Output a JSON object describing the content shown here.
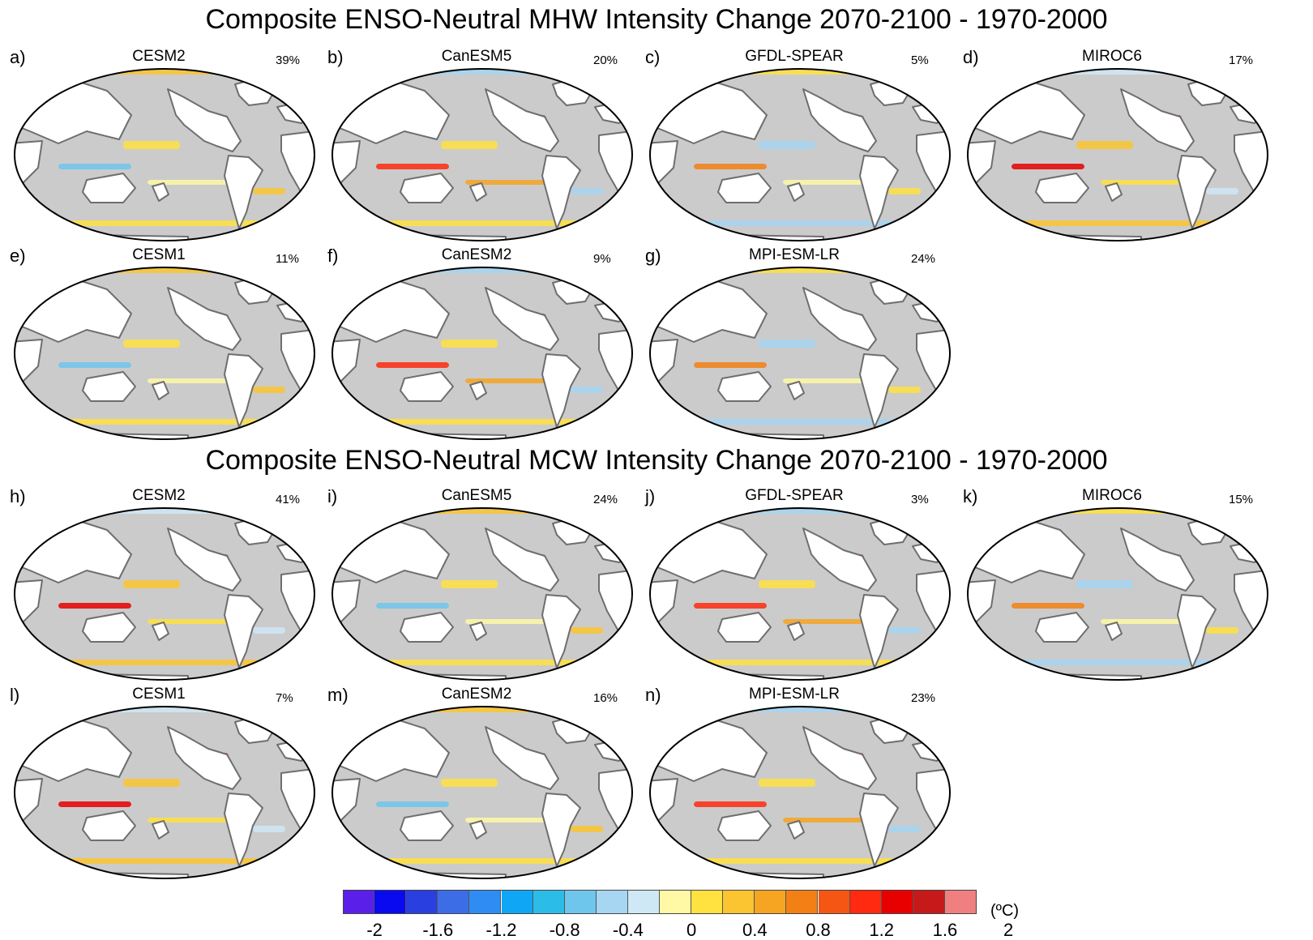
{
  "titles": {
    "mhw": "Composite ENSO-Neutral MHW Intensity Change 2070-2100 - 1970-2000",
    "mcw": "Composite ENSO-Neutral MCW Intensity Change 2070-2100 - 1970-2000"
  },
  "panels": [
    {
      "letter": "a)",
      "model": "CESM2",
      "pct": "39%"
    },
    {
      "letter": "b)",
      "model": "CanESM5",
      "pct": "20%"
    },
    {
      "letter": "c)",
      "model": "GFDL-SPEAR",
      "pct": "5%"
    },
    {
      "letter": "d)",
      "model": "MIROC6",
      "pct": "17%"
    },
    {
      "letter": "e)",
      "model": "CESM1",
      "pct": "11%"
    },
    {
      "letter": "f)",
      "model": "CanESM2",
      "pct": "9%"
    },
    {
      "letter": "g)",
      "model": "MPI-ESM-LR",
      "pct": "24%"
    },
    {
      "letter": "h)",
      "model": "CESM2",
      "pct": "41%"
    },
    {
      "letter": "i)",
      "model": "CanESM5",
      "pct": "24%"
    },
    {
      "letter": "j)",
      "model": "GFDL-SPEAR",
      "pct": "3%"
    },
    {
      "letter": "k)",
      "model": "MIROC6",
      "pct": "15%"
    },
    {
      "letter": "l)",
      "model": "CESM1",
      "pct": "7%"
    },
    {
      "letter": "m)",
      "model": "CanESM2",
      "pct": "16%"
    },
    {
      "letter": "n)",
      "model": "MPI-ESM-LR",
      "pct": "23%"
    }
  ],
  "colorbar": {
    "colors": [
      "#5a1fe8",
      "#0a0af0",
      "#2a3fe0",
      "#3c6de6",
      "#2e8cf2",
      "#0fa6f5",
      "#2bbde8",
      "#6fc6ec",
      "#a6d6f2",
      "#cfe8f6",
      "#fff9a6",
      "#ffe240",
      "#fbc531",
      "#f6a523",
      "#f38014",
      "#f55614",
      "#ff2a10",
      "#e60000",
      "#c61a1a",
      "#f08080"
    ],
    "tick_labels": [
      "-2",
      "-1.6",
      "-1.2",
      "-0.8",
      "-0.4",
      "0",
      "0.4",
      "0.8",
      "1.2",
      "1.6",
      "2"
    ],
    "unit": "(ºC)"
  },
  "map_colors": {
    "ocean": "#cbcbcb",
    "land": "#ffffff",
    "coast": "#6e6e6e"
  }
}
